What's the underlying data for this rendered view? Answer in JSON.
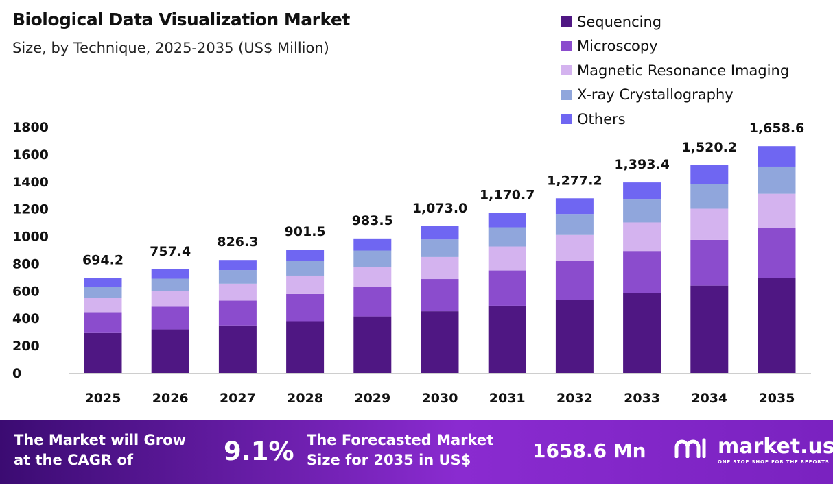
{
  "title": "Biological Data Visualization Market",
  "subtitle": "Size, by Technique, 2025-2035 (US$ Million)",
  "colors": {
    "Sequencing": "#4f1783",
    "Microscopy": "#8b4ccd",
    "Magnetic Resonance Imaging": "#d4b3ef",
    "X-ray Crystallography": "#90a6dc",
    "Others": "#6f66f2"
  },
  "chart_data": {
    "type": "bar",
    "stacked": true,
    "title": "Biological Data Visualization Market",
    "subtitle": "Size, by Technique, 2025-2035 (US$ Million)",
    "categories": [
      "2025",
      "2026",
      "2027",
      "2028",
      "2029",
      "2030",
      "2031",
      "2032",
      "2033",
      "2034",
      "2035"
    ],
    "series": [
      {
        "name": "Sequencing",
        "values": [
          291.6,
          318.1,
          347.0,
          378.6,
          413.1,
          450.7,
          491.7,
          536.4,
          585.2,
          638.5,
          696.6
        ]
      },
      {
        "name": "Microscopy",
        "values": [
          152.7,
          166.6,
          181.8,
          198.3,
          216.4,
          236.1,
          257.6,
          281.0,
          306.5,
          334.4,
          364.9
        ]
      },
      {
        "name": "Magnetic Resonance Imaging",
        "values": [
          104.1,
          113.6,
          123.9,
          135.2,
          147.5,
          161.0,
          175.6,
          191.6,
          209.0,
          228.0,
          248.8
        ]
      },
      {
        "name": "X-ray Crystallography",
        "values": [
          83.3,
          90.9,
          99.2,
          108.2,
          118.0,
          128.8,
          140.5,
          153.3,
          167.2,
          182.4,
          199.0
        ]
      },
      {
        "name": "Others",
        "values": [
          62.5,
          68.2,
          74.4,
          81.1,
          88.5,
          96.6,
          105.4,
          114.9,
          125.4,
          136.8,
          149.3
        ]
      }
    ],
    "totals": [
      694.2,
      757.4,
      826.3,
      901.5,
      983.5,
      1073.0,
      1170.7,
      1277.2,
      1393.4,
      1520.2,
      1658.6
    ],
    "total_labels": [
      "694.2",
      "757.4",
      "826.3",
      "901.5",
      "983.5",
      "1,073.0",
      "1,170.7",
      "1,277.2",
      "1,393.4",
      "1,520.2",
      "1,658.6"
    ],
    "yticks": [
      0,
      200,
      400,
      600,
      800,
      1000,
      1200,
      1400,
      1600,
      1800
    ],
    "ylim": [
      0,
      1800
    ],
    "xlabel": "",
    "ylabel": "",
    "grid": false,
    "legend_position": "top-right"
  },
  "footer": {
    "cagr_text": "The Market will Grow at the CAGR of",
    "cagr_line1": "The Market will Grow",
    "cagr_line2": "at the CAGR of",
    "cagr_value": "9.1%",
    "forecast_line1": "The Forecasted Market",
    "forecast_line2": "Size for 2035 in US$",
    "forecast_value": "1658.6 Mn",
    "brand": "market.us",
    "brand_tagline": "ONE STOP SHOP FOR THE REPORTS"
  }
}
